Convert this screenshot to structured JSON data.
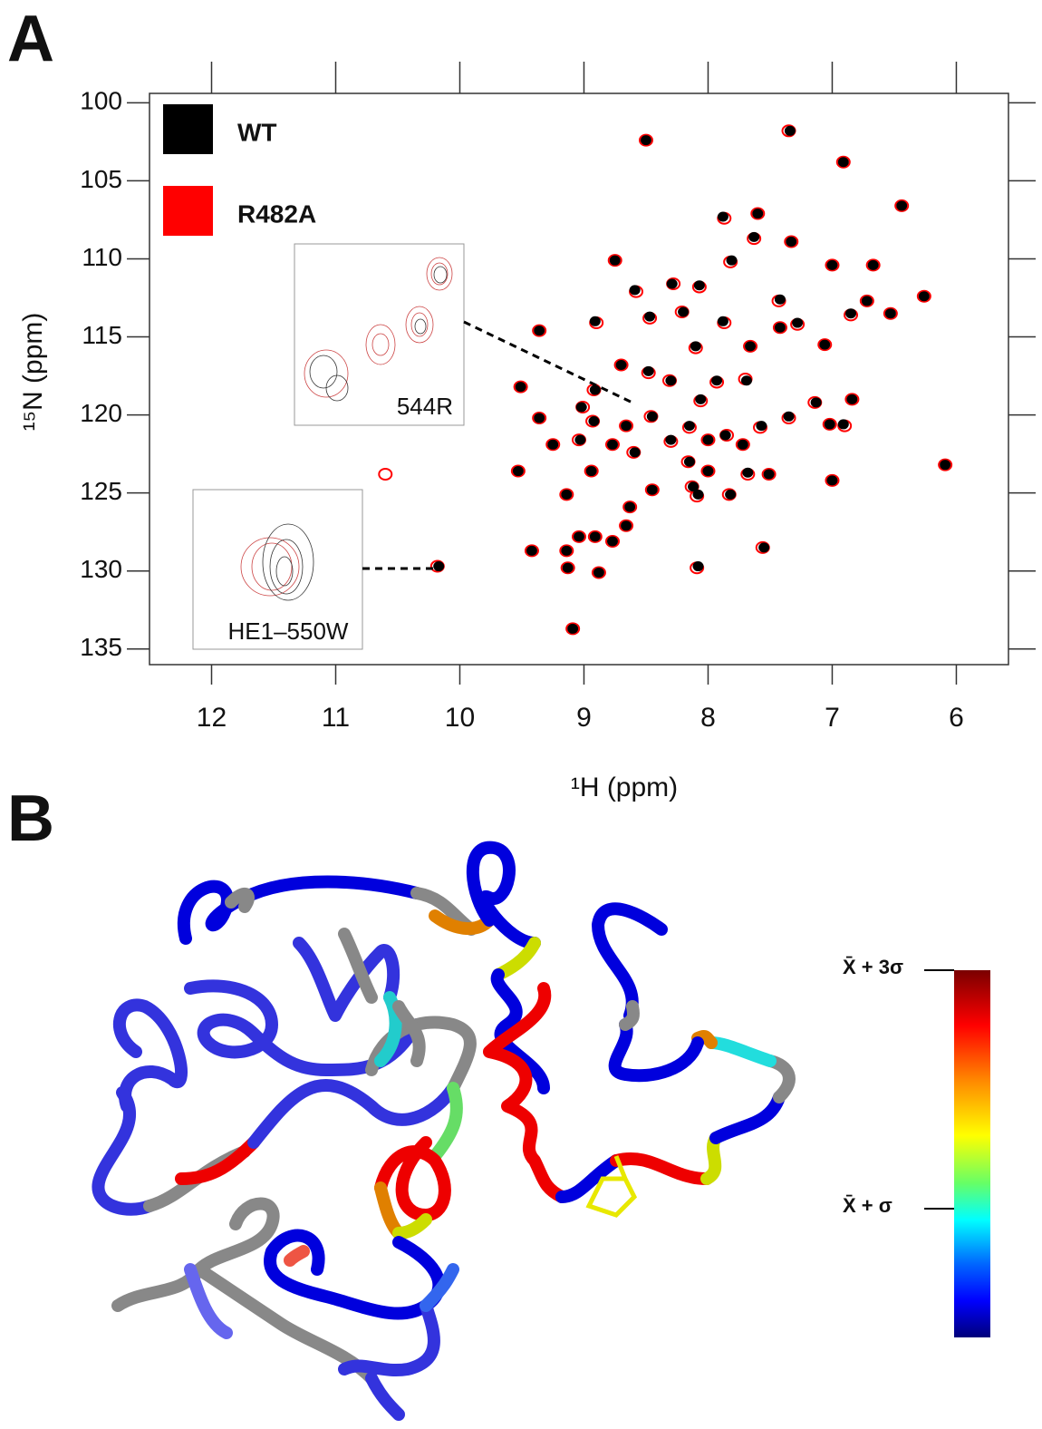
{
  "panel_labels": [
    "A",
    "B"
  ],
  "chart_data": {
    "type": "scatter",
    "x_label": "¹H (ppm)",
    "y_label": "¹⁵N (ppm)",
    "xlim": [
      12.5,
      5.58
    ],
    "ylim": [
      99.4,
      136
    ],
    "xticks": [
      12,
      11,
      10,
      9,
      8,
      7,
      6
    ],
    "yticks": [
      100,
      105,
      110,
      115,
      120,
      125,
      130,
      135
    ],
    "legend": "top-left",
    "series": [
      {
        "name": "R482A",
        "color": "#ff0000",
        "x": [
          7.35,
          6.91,
          6.44,
          7.87,
          7.6,
          7.63,
          7.33,
          7.82,
          8.75,
          7.0,
          6.67,
          7.43,
          6.26,
          8.28,
          8.07,
          8.58,
          6.72,
          6.85,
          6.53,
          8.47,
          9.36,
          8.9,
          8.21,
          7.87,
          7.28,
          8.1,
          7.06,
          7.66,
          7.42,
          8.7,
          8.48,
          7.93,
          7.7,
          8.31,
          8.92,
          9.51,
          6.84,
          7.14,
          8.06,
          9.01,
          9.36,
          8.93,
          7.35,
          8.66,
          8.46,
          8.15,
          8.0,
          8.3,
          7.85,
          7.72,
          7.58,
          7.02,
          6.9,
          9.25,
          9.04,
          8.77,
          8.16,
          8.0,
          8.6,
          6.09,
          9.53,
          8.94,
          7.68,
          7.51,
          7.0,
          8.45,
          8.13,
          9.14,
          8.09,
          7.83,
          8.63,
          8.66,
          8.91,
          8.77,
          9.04,
          9.42,
          9.14,
          7.56,
          8.09,
          10.18,
          9.13,
          8.88,
          9.09,
          10.6,
          8.5
        ],
        "values": [
          101.8,
          103.8,
          106.6,
          107.4,
          107.1,
          108.7,
          108.9,
          110.2,
          110.1,
          110.4,
          110.4,
          112.7,
          112.4,
          111.6,
          111.8,
          112.1,
          112.7,
          113.6,
          113.5,
          113.8,
          114.6,
          114.1,
          113.4,
          114.1,
          114.2,
          115.7,
          115.5,
          115.6,
          114.4,
          116.8,
          117.3,
          117.9,
          117.7,
          117.8,
          118.4,
          118.2,
          119.0,
          119.2,
          119.1,
          119.5,
          120.2,
          120.4,
          120.2,
          120.7,
          120.1,
          120.8,
          121.6,
          121.7,
          121.3,
          121.9,
          120.8,
          120.6,
          120.7,
          121.9,
          121.6,
          121.9,
          123.0,
          123.6,
          122.4,
          123.2,
          123.6,
          123.6,
          123.8,
          123.8,
          124.2,
          124.8,
          124.6,
          125.1,
          125.2,
          125.1,
          125.9,
          127.1,
          127.8,
          128.1,
          127.8,
          128.7,
          128.7,
          128.5,
          129.8,
          129.7,
          129.8,
          130.1,
          133.7,
          123.8,
          102.4
        ]
      },
      {
        "name": "WT",
        "color": "#000000",
        "x": [
          7.34,
          6.91,
          6.44,
          7.88,
          7.6,
          7.63,
          7.33,
          7.81,
          8.75,
          7.0,
          6.67,
          7.42,
          6.26,
          8.29,
          8.07,
          8.59,
          6.72,
          6.85,
          6.53,
          8.47,
          9.36,
          8.91,
          8.2,
          7.88,
          7.28,
          8.1,
          7.06,
          7.66,
          7.42,
          8.7,
          8.48,
          7.93,
          7.69,
          8.3,
          8.91,
          9.51,
          6.84,
          7.13,
          8.06,
          9.02,
          9.36,
          8.92,
          7.35,
          8.66,
          8.45,
          8.15,
          8.0,
          8.3,
          7.86,
          7.72,
          7.57,
          7.02,
          6.91,
          9.25,
          9.03,
          8.77,
          8.15,
          8.0,
          8.59,
          6.09,
          9.53,
          8.94,
          7.68,
          7.51,
          7.0,
          8.45,
          8.12,
          9.14,
          8.08,
          7.82,
          8.63,
          8.66,
          8.91,
          8.77,
          9.04,
          9.42,
          9.14,
          7.55,
          8.08,
          10.17,
          9.13,
          8.88,
          9.09,
          8.5
        ],
        "values": [
          101.8,
          103.8,
          106.6,
          107.3,
          107.1,
          108.6,
          108.9,
          110.1,
          110.1,
          110.4,
          110.4,
          112.6,
          112.4,
          111.6,
          111.7,
          112.0,
          112.7,
          113.5,
          113.5,
          113.7,
          114.6,
          114.0,
          113.4,
          114.0,
          114.1,
          115.6,
          115.5,
          115.6,
          114.4,
          116.8,
          117.2,
          117.8,
          117.8,
          117.8,
          118.4,
          118.2,
          119.0,
          119.2,
          119.0,
          119.5,
          120.2,
          120.4,
          120.1,
          120.7,
          120.1,
          120.7,
          121.6,
          121.6,
          121.3,
          121.9,
          120.7,
          120.6,
          120.6,
          121.9,
          121.6,
          121.9,
          123.0,
          123.6,
          122.4,
          123.2,
          123.6,
          123.6,
          123.7,
          123.8,
          124.2,
          124.8,
          124.6,
          125.1,
          125.1,
          125.1,
          125.9,
          127.1,
          127.8,
          128.1,
          127.8,
          128.7,
          128.7,
          128.5,
          129.7,
          129.7,
          129.8,
          130.1,
          133.7,
          102.4
        ]
      }
    ],
    "annotations": [
      "544R",
      "HE1–550W"
    ]
  },
  "structure_colorbar": {
    "labels": [
      "X̄ + 3σ",
      "X̄ + σ"
    ]
  }
}
